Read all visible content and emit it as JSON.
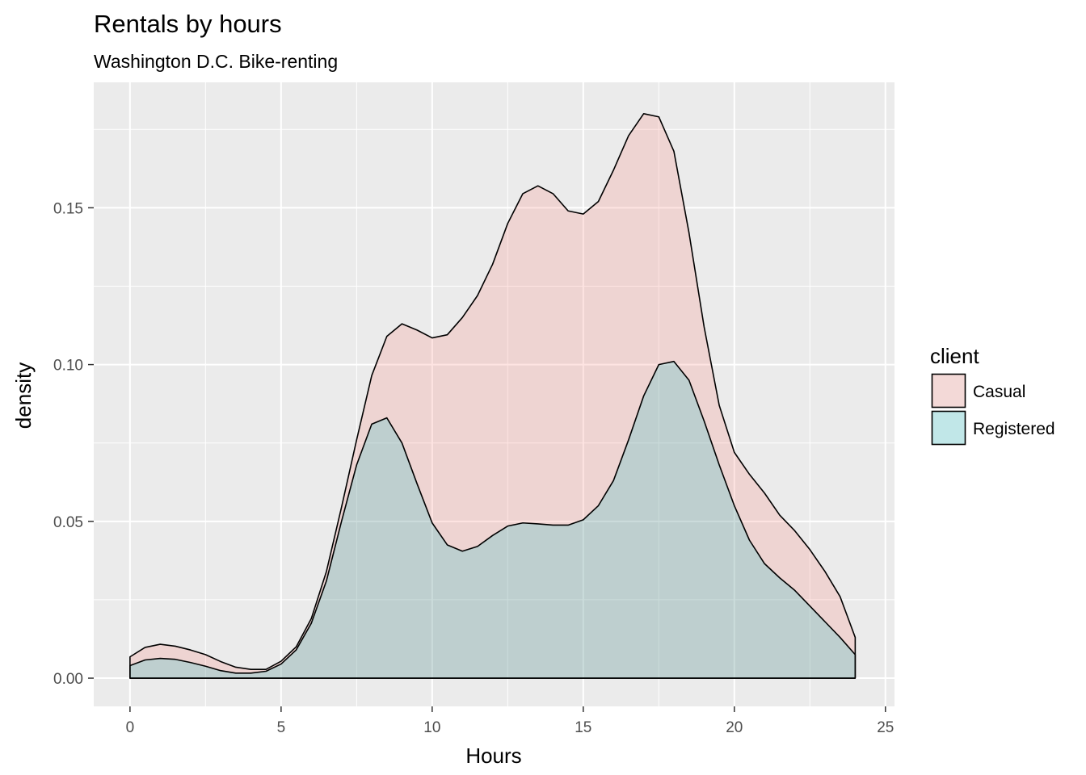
{
  "chart_data": {
    "type": "area",
    "title": "Rentals by hours",
    "subtitle": "Washington D.C. Bike-renting",
    "xlabel": "Hours",
    "ylabel": "density",
    "xlim": [
      -1.2,
      25.3
    ],
    "ylim": [
      -0.009,
      0.19
    ],
    "x_ticks": [
      0,
      5,
      10,
      15,
      20,
      25
    ],
    "x_tick_labels": [
      "0",
      "5",
      "10",
      "15",
      "20",
      "25"
    ],
    "y_ticks": [
      0.0,
      0.05,
      0.1,
      0.15
    ],
    "y_tick_labels": [
      "0.00",
      "0.05",
      "0.10",
      "0.15"
    ],
    "grid": true,
    "legend": {
      "title": "client",
      "position": "right"
    },
    "series": [
      {
        "name": "Casual",
        "color": "#F8766D",
        "fill_opacity": 0.2,
        "stacked_on": "Registered",
        "x": [
          0,
          0.5,
          1,
          1.5,
          2,
          2.5,
          3,
          3.5,
          4,
          4.5,
          5,
          5.5,
          6,
          6.5,
          7,
          7.5,
          8,
          8.5,
          9,
          9.5,
          10,
          10.5,
          11,
          11.5,
          12,
          12.5,
          13,
          13.5,
          14,
          14.5,
          15,
          15.5,
          16,
          16.5,
          17,
          17.5,
          18,
          18.5,
          19,
          19.5,
          20,
          20.5,
          21,
          21.5,
          22,
          22.5,
          23,
          23.5,
          24
        ],
        "values": [
          0.0068,
          0.0098,
          0.0108,
          0.0102,
          0.009,
          0.0075,
          0.0053,
          0.0035,
          0.0028,
          0.0028,
          0.0054,
          0.01,
          0.019,
          0.034,
          0.0545,
          0.076,
          0.0965,
          0.109,
          0.113,
          0.111,
          0.1085,
          0.1095,
          0.115,
          0.122,
          0.132,
          0.145,
          0.1545,
          0.157,
          0.1545,
          0.149,
          0.148,
          0.152,
          0.162,
          0.173,
          0.18,
          0.179,
          0.168,
          0.142,
          0.112,
          0.087,
          0.072,
          0.065,
          0.059,
          0.052,
          0.047,
          0.041,
          0.034,
          0.026,
          0.013
        ]
      },
      {
        "name": "Registered",
        "color": "#00BFC4",
        "fill_opacity": 0.2,
        "x": [
          0,
          0.5,
          1,
          1.5,
          2,
          2.5,
          3,
          3.5,
          4,
          4.5,
          5,
          5.5,
          6,
          6.5,
          7,
          7.5,
          8,
          8.5,
          9,
          9.5,
          10,
          10.5,
          11,
          11.5,
          12,
          12.5,
          13,
          13.5,
          14,
          14.5,
          15,
          15.5,
          16,
          16.5,
          17,
          17.5,
          18,
          18.5,
          19,
          19.5,
          20,
          20.5,
          21,
          21.5,
          22,
          22.5,
          23,
          23.5,
          24
        ],
        "values": [
          0.004,
          0.0058,
          0.0063,
          0.006,
          0.005,
          0.0038,
          0.0024,
          0.0016,
          0.0016,
          0.0022,
          0.0045,
          0.009,
          0.0175,
          0.031,
          0.05,
          0.068,
          0.081,
          0.083,
          0.075,
          0.062,
          0.0495,
          0.0425,
          0.0405,
          0.042,
          0.0455,
          0.0485,
          0.0495,
          0.0492,
          0.0488,
          0.0488,
          0.0505,
          0.055,
          0.063,
          0.076,
          0.09,
          0.1,
          0.101,
          0.095,
          0.082,
          0.068,
          0.055,
          0.044,
          0.0365,
          0.032,
          0.028,
          0.023,
          0.018,
          0.013,
          0.0075
        ]
      }
    ]
  }
}
